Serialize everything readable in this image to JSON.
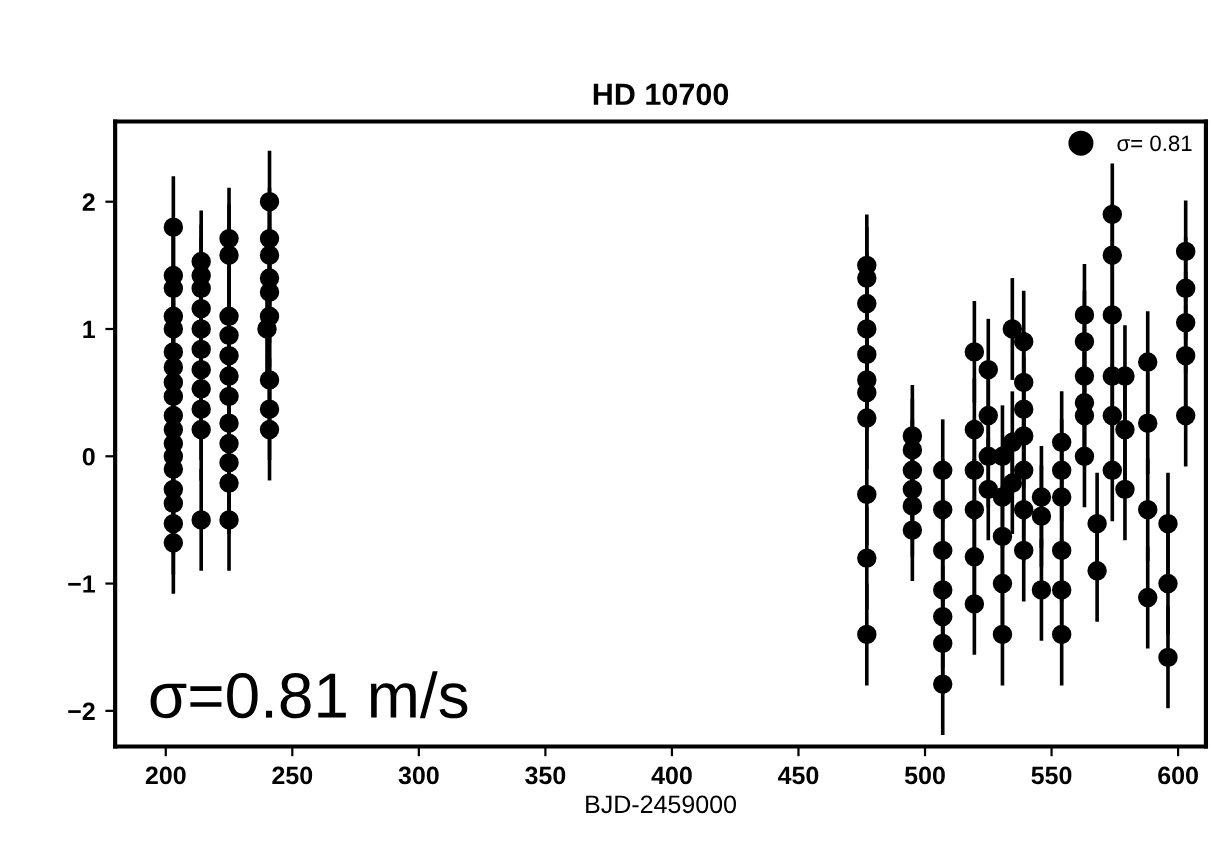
{
  "chart_data": {
    "type": "scatter",
    "title": "HD 10700",
    "xlabel": "BJD-2459000",
    "xlim": [
      180,
      611
    ],
    "ylim": [
      -2.28,
      2.63
    ],
    "xticks": [
      200,
      250,
      300,
      350,
      400,
      450,
      500,
      550,
      600
    ],
    "yticks": [
      {
        "value": -2,
        "label": "−2"
      },
      {
        "value": -1,
        "label": "−1"
      },
      0,
      1,
      2
    ],
    "grid": false,
    "legend": "top right",
    "marker": "circle",
    "annotations": [
      "σ=0.81 m/s"
    ],
    "series": [
      {
        "name": "σ= 0.81",
        "color": "#000000",
        "x": [
          203,
          203,
          203,
          203,
          203,
          203,
          203,
          203,
          203,
          203,
          203,
          203,
          203,
          203,
          203,
          203,
          203,
          203,
          214,
          214,
          214,
          214,
          214,
          214,
          214,
          214,
          214,
          214,
          214,
          225,
          225,
          225,
          225,
          225,
          225,
          225,
          225,
          225,
          225,
          225,
          225,
          241,
          241,
          241,
          241,
          241,
          241,
          240,
          241,
          241,
          241,
          477,
          477,
          477,
          477,
          477,
          477,
          477,
          477,
          477,
          477,
          477,
          495,
          495,
          495,
          495,
          495,
          495,
          507,
          507,
          507,
          507,
          507,
          507,
          507,
          519.5,
          519.5,
          519.5,
          519.5,
          519.5,
          519.5,
          525,
          525,
          525,
          525,
          530.6,
          530.6,
          530.6,
          530.6,
          530.6,
          534.5,
          534.5,
          534.5,
          539,
          539,
          539,
          539,
          539,
          539,
          539,
          546,
          546,
          546,
          554,
          554,
          554,
          554,
          554,
          554,
          563,
          563,
          563,
          563,
          563,
          563,
          568,
          568,
          574,
          574,
          574,
          574,
          574,
          574,
          579,
          579,
          579,
          588,
          588,
          588,
          588,
          596,
          596,
          596,
          603,
          603,
          603,
          603,
          603
        ],
        "values": [
          1.8,
          1.42,
          1.32,
          1.1,
          1.0,
          0.82,
          0.7,
          0.58,
          0.47,
          0.32,
          0.21,
          0.1,
          0.0,
          -0.1,
          -0.26,
          -0.37,
          -0.53,
          -0.68,
          1.53,
          1.42,
          1.32,
          1.16,
          1.0,
          0.84,
          0.68,
          0.53,
          0.37,
          0.21,
          -0.5,
          1.71,
          1.58,
          1.1,
          0.95,
          0.79,
          0.63,
          0.47,
          0.26,
          0.1,
          -0.05,
          -0.21,
          -0.5,
          2.0,
          1.71,
          1.58,
          1.4,
          1.29,
          1.1,
          1.0,
          0.6,
          0.37,
          0.21,
          1.5,
          1.4,
          1.2,
          1.0,
          0.8,
          0.6,
          0.5,
          0.3,
          -0.3,
          -0.8,
          -1.4,
          0.16,
          0.05,
          -0.11,
          -0.26,
          -0.39,
          -0.58,
          -0.11,
          -0.42,
          -0.74,
          -1.05,
          -1.26,
          -1.47,
          -1.79,
          0.82,
          0.21,
          -0.11,
          -0.42,
          -0.79,
          -1.16,
          0.68,
          0.32,
          0.0,
          -0.26,
          0.0,
          -0.32,
          -0.63,
          -1.0,
          -1.4,
          1.0,
          0.11,
          -0.21,
          0.9,
          0.58,
          0.37,
          0.16,
          -0.11,
          -0.42,
          -0.74,
          -0.32,
          -0.47,
          -1.05,
          0.11,
          -0.11,
          -0.32,
          -0.74,
          -1.05,
          -1.4,
          1.11,
          0.9,
          0.63,
          0.42,
          0.32,
          0.0,
          -0.53,
          -0.9,
          1.9,
          1.58,
          1.11,
          0.63,
          0.32,
          -0.11,
          0.63,
          0.21,
          -0.26,
          0.74,
          0.26,
          -0.42,
          -1.11,
          -0.53,
          -1.0,
          -1.58,
          1.61,
          1.32,
          1.05,
          0.79,
          0.32
        ],
        "errors": [
          0.4,
          0.4,
          0.4,
          0.4,
          0.4,
          0.4,
          0.4,
          0.4,
          0.4,
          0.4,
          0.4,
          0.4,
          0.4,
          0.4,
          0.4,
          0.4,
          0.4,
          0.4,
          0.4,
          0.4,
          0.4,
          0.4,
          0.4,
          0.4,
          0.4,
          0.4,
          0.4,
          0.4,
          0.4,
          0.4,
          0.4,
          0.4,
          0.4,
          0.4,
          0.4,
          0.4,
          0.4,
          0.4,
          0.4,
          0.4,
          0.4,
          0.4,
          0.4,
          0.4,
          0.4,
          0.4,
          0.4,
          0.4,
          0.4,
          0.4,
          0.4,
          0.4,
          0.4,
          0.4,
          0.4,
          0.4,
          0.4,
          0.4,
          0.4,
          0.4,
          0.4,
          0.4,
          0.4,
          0.4,
          0.4,
          0.4,
          0.4,
          0.4,
          0.4,
          0.4,
          0.4,
          0.4,
          0.4,
          0.4,
          0.4,
          0.4,
          0.4,
          0.4,
          0.4,
          0.4,
          0.4,
          0.4,
          0.4,
          0.4,
          0.4,
          0.4,
          0.4,
          0.4,
          0.4,
          0.4,
          0.4,
          0.4,
          0.4,
          0.4,
          0.4,
          0.4,
          0.4,
          0.4,
          0.4,
          0.4,
          0.4,
          0.4,
          0.4,
          0.4,
          0.4,
          0.4,
          0.4,
          0.4,
          0.4,
          0.4,
          0.4,
          0.4,
          0.4,
          0.4,
          0.4,
          0.4,
          0.4,
          0.4,
          0.4,
          0.4,
          0.4,
          0.4,
          0.4,
          0.4,
          0.4,
          0.4,
          0.4,
          0.4,
          0.4,
          0.4,
          0.4,
          0.4,
          0.4,
          0.4,
          0.4,
          0.4,
          0.4,
          0.4
        ]
      }
    ]
  }
}
